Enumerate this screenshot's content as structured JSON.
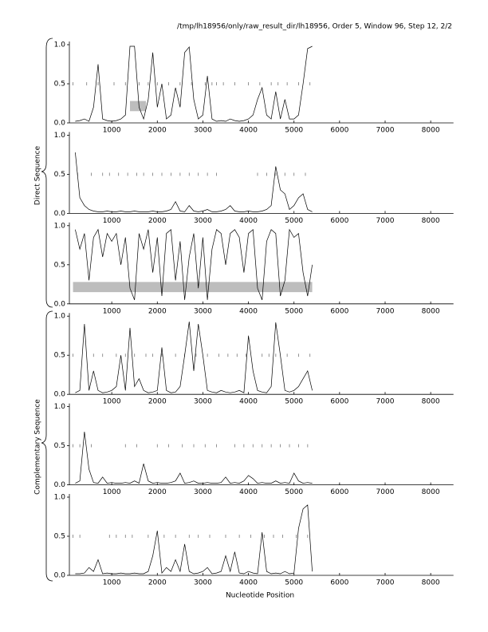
{
  "header": {
    "title": "/tmp/lh18956/only/raw_result_dir/lh18956, Order 5, Window 96, Step 12, 2/2"
  },
  "x_label": "Nucleotide Position",
  "group_labels": [
    "Direct Sequence",
    "Complementary Sequence"
  ],
  "chart_data": [
    {
      "type": "line",
      "color": "#000000",
      "x": [
        200,
        300,
        400,
        500,
        600,
        700,
        800,
        900,
        1000,
        1100,
        1200,
        1300,
        1400,
        1500,
        1600,
        1700,
        1800,
        1900,
        2000,
        2100,
        2200,
        2300,
        2400,
        2500,
        2600,
        2700,
        2800,
        2900,
        3000,
        3100,
        3200,
        3300,
        3400,
        3500,
        3600,
        3700,
        3800,
        3900,
        4000,
        4100,
        4200,
        4300,
        4400,
        4500,
        4600,
        4700,
        4800,
        4900,
        5000,
        5100,
        5200,
        5300,
        5400
      ],
      "values": [
        0.02,
        0.03,
        0.05,
        0.02,
        0.2,
        0.75,
        0.05,
        0.03,
        0.02,
        0.03,
        0.05,
        0.1,
        0.98,
        0.98,
        0.2,
        0.05,
        0.3,
        0.9,
        0.2,
        0.5,
        0.05,
        0.1,
        0.45,
        0.2,
        0.9,
        0.97,
        0.3,
        0.05,
        0.1,
        0.6,
        0.05,
        0.02,
        0.03,
        0.02,
        0.05,
        0.03,
        0.02,
        0.03,
        0.05,
        0.1,
        0.3,
        0.45,
        0.1,
        0.05,
        0.4,
        0.05,
        0.3,
        0.05,
        0.05,
        0.1,
        0.5,
        0.95,
        0.98
      ],
      "markers": [
        150,
        450,
        700,
        1050,
        1300,
        1600,
        1800,
        2000,
        2250,
        2500,
        2750,
        3050,
        3200,
        3300,
        3450,
        3700,
        4000,
        4250,
        4500,
        4650,
        4850,
        5100,
        5350
      ],
      "band": {
        "x": [
          1400,
          1750
        ],
        "y": [
          0.15,
          0.28
        ]
      },
      "xlim": [
        0,
        8500
      ],
      "xticks": [
        1000,
        2000,
        3000,
        4000,
        5000,
        6000,
        7000,
        8000
      ],
      "ylim": [
        0,
        1
      ],
      "yticks": [
        {
          "value": 0,
          "label": "0.0"
        },
        {
          "value": 0.5,
          "label": "0.5"
        },
        {
          "value": 1,
          "label": "1.0"
        }
      ]
    },
    {
      "type": "line",
      "color": "#000000",
      "x": [
        200,
        300,
        400,
        500,
        600,
        700,
        800,
        900,
        1000,
        1100,
        1200,
        1300,
        1400,
        1500,
        1600,
        1700,
        1800,
        1900,
        2000,
        2100,
        2200,
        2300,
        2400,
        2500,
        2600,
        2700,
        2800,
        2900,
        3000,
        3100,
        3200,
        3300,
        3400,
        3500,
        3600,
        3700,
        3800,
        3900,
        4000,
        4100,
        4200,
        4300,
        4400,
        4500,
        4600,
        4700,
        4800,
        4900,
        5000,
        5100,
        5200,
        5300,
        5400
      ],
      "values": [
        0.78,
        0.2,
        0.1,
        0.05,
        0.03,
        0.02,
        0.02,
        0.03,
        0.02,
        0.02,
        0.03,
        0.02,
        0.02,
        0.03,
        0.02,
        0.02,
        0.02,
        0.03,
        0.02,
        0.02,
        0.03,
        0.05,
        0.15,
        0.03,
        0.02,
        0.1,
        0.03,
        0.02,
        0.03,
        0.05,
        0.02,
        0.02,
        0.03,
        0.05,
        0.1,
        0.03,
        0.02,
        0.02,
        0.03,
        0.02,
        0.02,
        0.03,
        0.05,
        0.1,
        0.6,
        0.3,
        0.25,
        0.05,
        0.1,
        0.2,
        0.25,
        0.05,
        0.02
      ],
      "markers": [
        250,
        550,
        800,
        950,
        1150,
        1350,
        1550,
        1700,
        1900,
        2100,
        2300,
        2500,
        2700,
        2900,
        3100,
        3300,
        4200,
        4400,
        4600,
        4800,
        5000,
        5250
      ],
      "xlim": [
        0,
        8500
      ],
      "xticks": [
        1000,
        2000,
        3000,
        4000,
        5000,
        6000,
        7000,
        8000
      ],
      "ylim": [
        0,
        1
      ],
      "yticks": [
        {
          "value": 0,
          "label": "0.0"
        },
        {
          "value": 0.5,
          "label": "0.5"
        },
        {
          "value": 1,
          "label": "1.0"
        }
      ]
    },
    {
      "type": "line",
      "color": "#000000",
      "x": [
        200,
        300,
        400,
        500,
        600,
        700,
        800,
        900,
        1000,
        1100,
        1200,
        1300,
        1400,
        1500,
        1600,
        1700,
        1800,
        1900,
        2000,
        2100,
        2200,
        2300,
        2400,
        2500,
        2600,
        2700,
        2800,
        2900,
        3000,
        3100,
        3200,
        3300,
        3400,
        3500,
        3600,
        3700,
        3800,
        3900,
        4000,
        4100,
        4200,
        4300,
        4400,
        4500,
        4600,
        4700,
        4800,
        4900,
        5000,
        5100,
        5200,
        5300,
        5400
      ],
      "values": [
        0.95,
        0.7,
        0.9,
        0.3,
        0.85,
        0.95,
        0.6,
        0.9,
        0.8,
        0.9,
        0.5,
        0.85,
        0.2,
        0.05,
        0.9,
        0.7,
        0.95,
        0.4,
        0.85,
        0.1,
        0.9,
        0.95,
        0.3,
        0.8,
        0.05,
        0.6,
        0.9,
        0.2,
        0.85,
        0.05,
        0.7,
        0.95,
        0.9,
        0.5,
        0.9,
        0.95,
        0.85,
        0.4,
        0.9,
        0.95,
        0.2,
        0.05,
        0.8,
        0.95,
        0.9,
        0.1,
        0.3,
        0.95,
        0.85,
        0.9,
        0.4,
        0.1,
        0.5
      ],
      "markers": [],
      "band": {
        "x": [
          150,
          5400
        ],
        "y": [
          0.15,
          0.28
        ]
      },
      "xlim": [
        0,
        8500
      ],
      "xticks": [
        1000,
        2000,
        3000,
        4000,
        5000,
        6000,
        7000,
        8000
      ],
      "ylim": [
        0,
        1
      ],
      "yticks": [
        {
          "value": 0,
          "label": "0.0"
        },
        {
          "value": 0.5,
          "label": "0.5"
        },
        {
          "value": 1,
          "label": "1.0"
        }
      ]
    },
    {
      "type": "line",
      "color": "#000000",
      "x": [
        200,
        300,
        400,
        500,
        600,
        700,
        800,
        900,
        1000,
        1100,
        1200,
        1300,
        1400,
        1500,
        1600,
        1700,
        1800,
        1900,
        2000,
        2100,
        2200,
        2300,
        2400,
        2500,
        2600,
        2700,
        2800,
        2900,
        3000,
        3100,
        3200,
        3300,
        3400,
        3500,
        3600,
        3700,
        3800,
        3900,
        4000,
        4100,
        4200,
        4300,
        4400,
        4500,
        4600,
        4700,
        4800,
        4900,
        5000,
        5100,
        5200,
        5300,
        5400
      ],
      "values": [
        0.02,
        0.05,
        0.9,
        0.05,
        0.3,
        0.05,
        0.02,
        0.03,
        0.05,
        0.1,
        0.5,
        0.05,
        0.85,
        0.1,
        0.2,
        0.05,
        0.02,
        0.03,
        0.05,
        0.6,
        0.05,
        0.02,
        0.03,
        0.1,
        0.5,
        0.93,
        0.3,
        0.9,
        0.5,
        0.05,
        0.03,
        0.02,
        0.05,
        0.03,
        0.02,
        0.03,
        0.05,
        0.02,
        0.75,
        0.3,
        0.05,
        0.03,
        0.02,
        0.1,
        0.92,
        0.5,
        0.05,
        0.03,
        0.05,
        0.1,
        0.2,
        0.3,
        0.05
      ],
      "markers": [
        150,
        600,
        800,
        1100,
        1300,
        1500,
        1750,
        1900,
        2100,
        2400,
        2600,
        2850,
        3100,
        3350,
        3550,
        3750,
        3950,
        4300,
        4450,
        4600,
        4850,
        5100,
        5350
      ],
      "xlim": [
        0,
        8500
      ],
      "xticks": [
        1000,
        2000,
        3000,
        4000,
        5000,
        6000,
        7000,
        8000
      ],
      "ylim": [
        0,
        1
      ],
      "yticks": [
        {
          "value": 0,
          "label": "0.0"
        },
        {
          "value": 0.5,
          "label": "0.5"
        },
        {
          "value": 1,
          "label": "1.0"
        }
      ]
    },
    {
      "type": "line",
      "color": "#000000",
      "x": [
        200,
        300,
        400,
        500,
        600,
        700,
        800,
        900,
        1000,
        1100,
        1200,
        1300,
        1400,
        1500,
        1600,
        1700,
        1800,
        1900,
        2000,
        2100,
        2200,
        2300,
        2400,
        2500,
        2600,
        2700,
        2800,
        2900,
        3000,
        3100,
        3200,
        3300,
        3400,
        3500,
        3600,
        3700,
        3800,
        3900,
        4000,
        4100,
        4200,
        4300,
        4400,
        4500,
        4600,
        4700,
        4800,
        4900,
        5000,
        5100,
        5200,
        5300,
        5400
      ],
      "values": [
        0.02,
        0.05,
        0.68,
        0.2,
        0.03,
        0.02,
        0.1,
        0.02,
        0.03,
        0.02,
        0.02,
        0.03,
        0.02,
        0.05,
        0.02,
        0.27,
        0.05,
        0.02,
        0.03,
        0.02,
        0.02,
        0.03,
        0.05,
        0.15,
        0.02,
        0.03,
        0.05,
        0.02,
        0.02,
        0.03,
        0.02,
        0.02,
        0.03,
        0.1,
        0.02,
        0.03,
        0.02,
        0.05,
        0.12,
        0.08,
        0.02,
        0.03,
        0.02,
        0.02,
        0.05,
        0.02,
        0.03,
        0.02,
        0.15,
        0.05,
        0.02,
        0.03,
        0.02
      ],
      "markers": [
        150,
        300,
        550,
        1300,
        1550,
        2000,
        2250,
        2550,
        2800,
        3050,
        3300,
        3700,
        3900,
        4100,
        4300,
        4500,
        4700,
        4900,
        5100,
        5300
      ],
      "xlim": [
        0,
        8500
      ],
      "xticks": [
        1000,
        2000,
        3000,
        4000,
        5000,
        6000,
        7000,
        8000
      ],
      "ylim": [
        0,
        1
      ],
      "yticks": [
        {
          "value": 0,
          "label": "0.0"
        },
        {
          "value": 0.5,
          "label": "0.5"
        },
        {
          "value": 1,
          "label": "1.0"
        }
      ]
    },
    {
      "type": "line",
      "color": "#000000",
      "x": [
        200,
        300,
        400,
        500,
        600,
        700,
        800,
        900,
        1000,
        1100,
        1200,
        1300,
        1400,
        1500,
        1600,
        1700,
        1800,
        1900,
        2000,
        2100,
        2200,
        2300,
        2400,
        2500,
        2600,
        2700,
        2800,
        2900,
        3000,
        3100,
        3200,
        3300,
        3400,
        3500,
        3600,
        3700,
        3800,
        3900,
        4000,
        4100,
        4200,
        4300,
        4400,
        4500,
        4600,
        4700,
        4800,
        4900,
        5000,
        5100,
        5200,
        5300,
        5400
      ],
      "values": [
        0.02,
        0.02,
        0.03,
        0.1,
        0.05,
        0.2,
        0.02,
        0.03,
        0.02,
        0.02,
        0.03,
        0.02,
        0.02,
        0.03,
        0.02,
        0.02,
        0.05,
        0.25,
        0.57,
        0.03,
        0.1,
        0.05,
        0.2,
        0.05,
        0.4,
        0.05,
        0.02,
        0.03,
        0.05,
        0.1,
        0.02,
        0.03,
        0.05,
        0.25,
        0.05,
        0.3,
        0.03,
        0.02,
        0.05,
        0.03,
        0.02,
        0.55,
        0.05,
        0.02,
        0.03,
        0.02,
        0.05,
        0.02,
        0.03,
        0.6,
        0.85,
        0.9,
        0.05
      ],
      "markers": [
        150,
        300,
        950,
        1100,
        1300,
        1450,
        1800,
        2150,
        2400,
        2700,
        2900,
        3150,
        3500,
        3800,
        4050,
        4350,
        4550,
        4750,
        5050,
        5300
      ],
      "xlim": [
        0,
        8500
      ],
      "xticks": [
        1000,
        2000,
        3000,
        4000,
        5000,
        6000,
        7000,
        8000
      ],
      "ylim": [
        0,
        1
      ],
      "yticks": [
        {
          "value": 0,
          "label": "0.0"
        },
        {
          "value": 0.5,
          "label": "0.5"
        },
        {
          "value": 1,
          "label": "1.0"
        }
      ]
    }
  ]
}
